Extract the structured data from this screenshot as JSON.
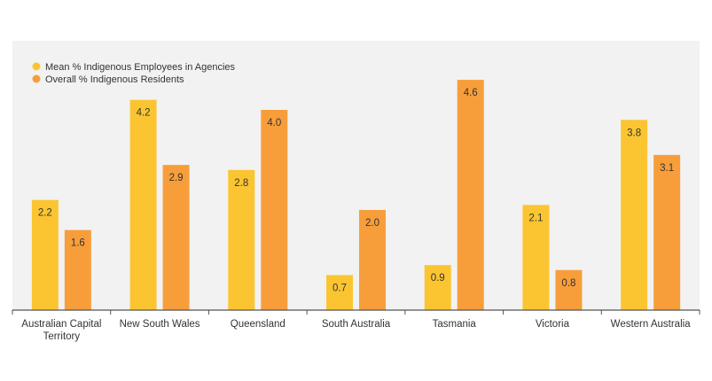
{
  "chart_data": {
    "type": "bar",
    "categories": [
      "Australian Capital Territory",
      "New South Wales",
      "Queensland",
      "South Australia",
      "Tasmania",
      "Victoria",
      "Western Australia"
    ],
    "series": [
      {
        "name": "Mean % Indigenous Employees in Agencies",
        "values": [
          2.2,
          4.2,
          2.8,
          0.7,
          0.9,
          2.1,
          3.8
        ],
        "labels": [
          "2.2",
          "4.2",
          "2.8",
          "0.7",
          "0.9",
          "2.1",
          "3.8"
        ],
        "color": "#FBC531"
      },
      {
        "name": "Overall % Indigenous Residents",
        "values": [
          1.6,
          2.9,
          4.0,
          2.0,
          4.6,
          0.8,
          3.1
        ],
        "labels": [
          "1.6",
          "2.9",
          "4.0",
          "2.0",
          "4.6",
          "0.8",
          "3.1"
        ],
        "color": "#F79E3B"
      }
    ],
    "ylim": [
      0,
      5
    ],
    "grid": false,
    "legend_position": "top-left",
    "background": "#F2F2F2",
    "axis_color": "#555555",
    "text_color": "#333333"
  }
}
